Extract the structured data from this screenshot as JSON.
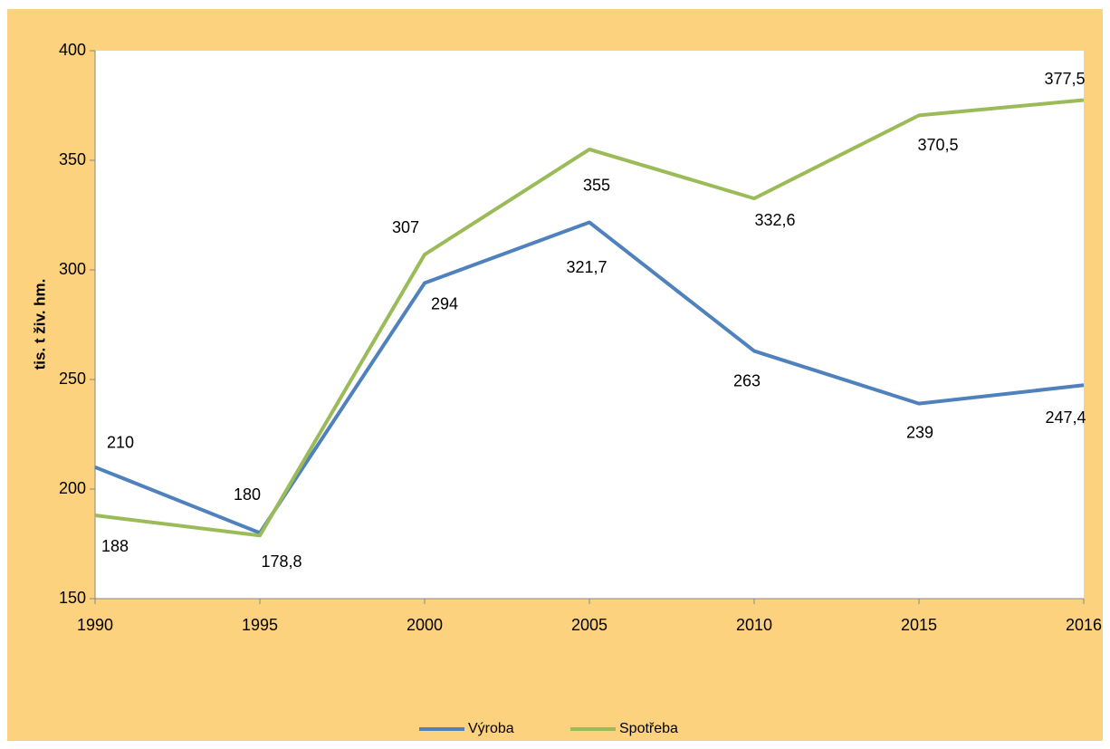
{
  "chart_data": {
    "type": "line",
    "y_label": "tis. t živ. hm.",
    "categories": [
      "1990",
      "1995",
      "2000",
      "2005",
      "2010",
      "2015",
      "2016"
    ],
    "series": [
      {
        "name": "Výroba",
        "color": "#4f81bd",
        "values": [
          210,
          180,
          294,
          321.7,
          263,
          239,
          247.4
        ],
        "value_labels": [
          "210",
          "180",
          "294",
          "321,7",
          "263",
          "239",
          "247,4"
        ]
      },
      {
        "name": "Spotřeba",
        "color": "#9bbb59",
        "values": [
          188,
          178.8,
          307,
          355,
          332.6,
          370.5,
          377.5
        ],
        "value_labels": [
          "188",
          "178,8",
          "307",
          "355",
          "332,6",
          "370,5",
          "377,5"
        ]
      }
    ],
    "ylim": [
      150,
      400
    ],
    "yticks": [
      150,
      200,
      250,
      300,
      350,
      400
    ],
    "grid": false,
    "legend": "bottom"
  }
}
